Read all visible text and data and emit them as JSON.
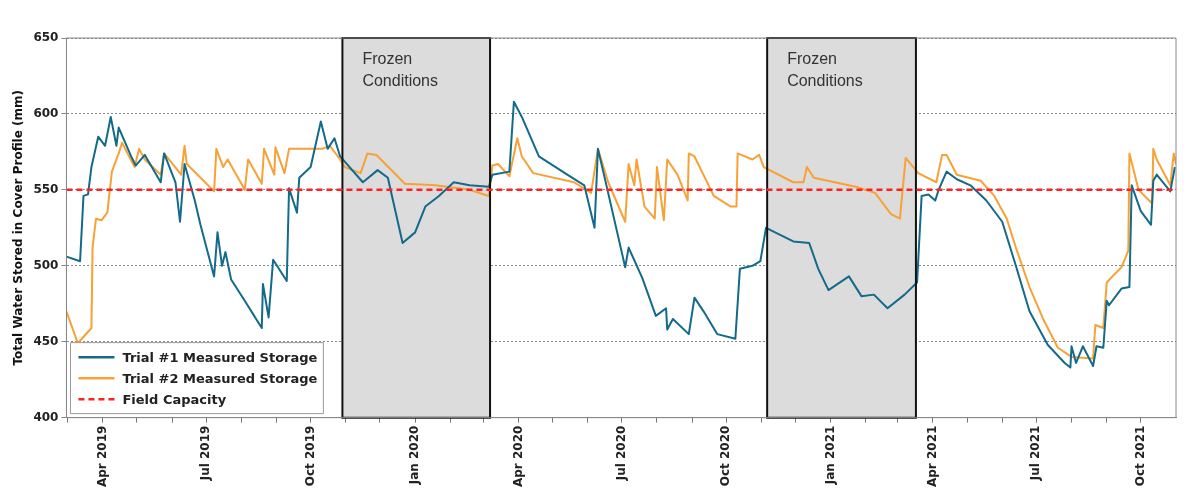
{
  "chart_data": {
    "type": "line",
    "ylabel": "Total Water Stored in Cover Profile (mm)",
    "xlim": [
      "2019-02-28",
      "2021-11-01"
    ],
    "xticks": [
      {
        "value": "2019-03-01",
        "label": null
      },
      {
        "value": "2019-04-01",
        "label": "Apr 2019"
      },
      {
        "value": "2019-05-01",
        "label": null
      },
      {
        "value": "2019-06-01",
        "label": null
      },
      {
        "value": "2019-07-01",
        "label": "Jul 2019"
      },
      {
        "value": "2019-08-01",
        "label": null
      },
      {
        "value": "2019-09-01",
        "label": null
      },
      {
        "value": "2019-10-01",
        "label": "Oct 2019"
      },
      {
        "value": "2019-11-01",
        "label": null
      },
      {
        "value": "2019-12-01",
        "label": null
      },
      {
        "value": "2020-01-01",
        "label": "Jan 2020"
      },
      {
        "value": "2020-02-01",
        "label": null
      },
      {
        "value": "2020-03-01",
        "label": null
      },
      {
        "value": "2020-04-01",
        "label": "Apr 2020"
      },
      {
        "value": "2020-05-01",
        "label": null
      },
      {
        "value": "2020-06-01",
        "label": null
      },
      {
        "value": "2020-07-01",
        "label": "Jul 2020"
      },
      {
        "value": "2020-08-01",
        "label": null
      },
      {
        "value": "2020-09-01",
        "label": null
      },
      {
        "value": "2020-10-01",
        "label": "Oct 2020"
      },
      {
        "value": "2020-11-01",
        "label": null
      },
      {
        "value": "2020-12-01",
        "label": null
      },
      {
        "value": "2021-01-01",
        "label": "Jan 2021"
      },
      {
        "value": "2021-02-01",
        "label": null
      },
      {
        "value": "2021-03-01",
        "label": null
      },
      {
        "value": "2021-04-01",
        "label": "Apr 2021"
      },
      {
        "value": "2021-05-01",
        "label": null
      },
      {
        "value": "2021-06-01",
        "label": null
      },
      {
        "value": "2021-07-01",
        "label": "Jul 2021"
      },
      {
        "value": "2021-08-01",
        "label": null
      },
      {
        "value": "2021-09-01",
        "label": null
      },
      {
        "value": "2021-10-01",
        "label": "Oct 2021"
      }
    ],
    "ylim": [
      400,
      650
    ],
    "yticks": [
      400,
      450,
      500,
      550,
      600,
      650
    ],
    "grid": "y",
    "legend": "bottom left",
    "series": [
      {
        "name": "Trial #1 Measured Storage",
        "color": "#136a8a",
        "x": [
          "2019-02-28",
          "2019-03-12",
          "2019-03-15",
          "2019-03-19",
          "2019-03-22",
          "2019-03-28",
          "2019-04-03",
          "2019-04-08",
          "2019-04-13",
          "2019-04-15",
          "2019-04-26",
          "2019-04-30",
          "2019-05-08",
          "2019-05-22",
          "2019-05-25",
          "2019-06-04",
          "2019-06-08",
          "2019-06-12",
          "2019-06-21",
          "2019-06-26",
          "2019-07-08",
          "2019-07-11",
          "2019-07-15",
          "2019-07-18",
          "2019-07-23",
          "2019-08-04",
          "2019-08-19",
          "2019-08-20",
          "2019-08-25",
          "2019-08-29",
          "2019-09-10",
          "2019-09-12",
          "2019-09-19",
          "2019-09-21",
          "2019-10-01",
          "2019-10-10",
          "2019-10-16",
          "2019-10-22",
          "2019-10-27",
          "2019-11-16",
          "2019-11-29",
          "2019-12-08",
          "2019-12-21",
          "2020-01-01",
          "2020-01-10",
          "2020-01-22",
          "2020-02-04",
          "2020-02-18",
          "2020-03-06",
          "2020-03-09",
          "2020-03-24",
          "2020-03-28",
          "2020-04-04",
          "2020-04-19",
          "2020-05-14",
          "2020-05-29",
          "2020-06-07",
          "2020-06-10",
          "2020-06-19",
          "2020-07-04",
          "2020-07-07",
          "2020-07-19",
          "2020-07-31",
          "2020-08-09",
          "2020-08-10",
          "2020-08-15",
          "2020-08-29",
          "2020-09-03",
          "2020-09-11",
          "2020-09-23",
          "2020-10-09",
          "2020-10-13",
          "2020-10-24",
          "2020-10-31",
          "2020-11-05",
          "2020-11-29",
          "2020-12-13",
          "2020-12-21",
          "2020-12-30",
          "2021-01-17",
          "2021-01-28",
          "2021-02-08",
          "2021-02-20",
          "2021-03-07",
          "2021-03-18",
          "2021-03-22",
          "2021-03-28",
          "2021-04-03",
          "2021-04-06",
          "2021-04-13",
          "2021-04-22",
          "2021-05-04",
          "2021-05-18",
          "2021-06-01",
          "2021-06-13",
          "2021-06-25",
          "2021-07-11",
          "2021-07-26",
          "2021-07-31",
          "2021-08-01",
          "2021-08-05",
          "2021-08-11",
          "2021-08-20",
          "2021-08-23",
          "2021-08-29",
          "2021-09-01",
          "2021-09-03",
          "2021-09-14",
          "2021-09-21",
          "2021-09-23",
          "2021-10-01",
          "2021-10-10",
          "2021-10-12",
          "2021-10-15",
          "2021-10-27",
          "2021-10-31"
        ],
        "values": [
          506,
          503,
          546,
          547,
          565,
          585,
          579,
          598,
          579,
          591,
          572,
          566,
          573,
          555,
          574,
          555,
          529,
          567,
          543,
          527,
          493,
          522,
          500,
          509,
          491,
          477,
          459,
          488,
          466,
          504,
          490,
          551,
          535,
          558,
          565,
          595,
          577,
          584,
          572,
          555,
          563,
          558,
          515,
          522,
          539,
          546,
          555,
          553,
          552,
          560,
          562,
          608,
          598,
          572,
          560,
          553,
          525,
          577,
          548,
          499,
          512,
          492,
          467,
          472,
          458,
          465,
          455,
          479,
          470,
          455,
          452,
          498,
          500,
          503,
          525,
          516,
          515,
          498,
          484,
          493,
          480,
          481,
          472,
          481,
          489,
          546,
          547,
          543,
          550,
          562,
          557,
          553,
          543,
          529,
          500,
          470,
          448,
          436,
          433,
          447,
          436,
          447,
          434,
          447,
          446,
          477,
          474,
          485,
          486,
          553,
          536,
          527,
          556,
          560,
          549,
          565
        ]
      },
      {
        "name": "Trial #2 Measured Storage",
        "color": "#f7a136",
        "x": [
          "2019-02-28",
          "2019-03-10",
          "2019-03-22",
          "2019-03-23",
          "2019-03-26",
          "2019-03-31",
          "2019-04-05",
          "2019-04-09",
          "2019-04-15",
          "2019-04-18",
          "2019-04-29",
          "2019-05-03",
          "2019-05-08",
          "2019-05-22",
          "2019-05-25",
          "2019-06-09",
          "2019-06-12",
          "2019-06-14",
          "2019-07-08",
          "2019-07-10",
          "2019-07-16",
          "2019-07-20",
          "2019-08-04",
          "2019-08-07",
          "2019-08-19",
          "2019-08-21",
          "2019-08-30",
          "2019-08-31",
          "2019-09-08",
          "2019-09-12",
          "2019-09-26",
          "2019-10-11",
          "2019-10-18",
          "2019-10-27",
          "2019-10-31",
          "2019-11-14",
          "2019-11-20",
          "2019-11-28",
          "2019-12-23",
          "2020-01-19",
          "2020-02-18",
          "2020-03-06",
          "2020-03-09",
          "2020-03-14",
          "2020-03-24",
          "2020-03-31",
          "2020-04-04",
          "2020-04-14",
          "2020-05-20",
          "2020-06-04",
          "2020-06-10",
          "2020-06-19",
          "2020-07-04",
          "2020-07-07",
          "2020-07-12",
          "2020-07-14",
          "2020-07-21",
          "2020-07-30",
          "2020-08-01",
          "2020-08-07",
          "2020-08-10",
          "2020-08-19",
          "2020-08-28",
          "2020-08-29",
          "2020-09-03",
          "2020-09-20",
          "2020-10-05",
          "2020-10-10",
          "2020-10-11",
          "2020-10-24",
          "2020-10-30",
          "2020-11-03",
          "2020-11-29",
          "2020-12-08",
          "2020-12-11",
          "2020-12-17",
          "2021-01-23",
          "2021-02-09",
          "2021-02-23",
          "2021-03-03",
          "2021-03-04",
          "2021-03-08",
          "2021-03-19",
          "2021-04-04",
          "2021-04-09",
          "2021-04-13",
          "2021-04-22",
          "2021-05-13",
          "2021-05-25",
          "2021-06-05",
          "2021-06-13",
          "2021-06-25",
          "2021-07-07",
          "2021-07-20",
          "2021-08-01",
          "2021-08-20",
          "2021-08-22",
          "2021-08-29",
          "2021-09-01",
          "2021-09-06",
          "2021-09-14",
          "2021-09-20",
          "2021-09-21",
          "2021-09-29",
          "2021-10-11",
          "2021-10-12",
          "2021-10-15",
          "2021-10-27",
          "2021-10-30",
          "2021-11-01"
        ],
        "values": [
          470,
          449,
          459,
          512,
          531,
          530,
          535,
          562,
          574,
          581,
          565,
          577,
          570,
          560,
          574,
          560,
          579,
          567,
          549,
          577,
          565,
          570,
          550,
          570,
          554,
          577,
          560,
          578,
          561,
          577,
          577,
          577,
          579,
          570,
          565,
          561,
          574,
          573,
          554,
          553,
          550,
          546,
          566,
          567,
          559,
          584,
          572,
          561,
          555,
          548,
          577,
          555,
          529,
          567,
          553,
          570,
          539,
          531,
          565,
          530,
          570,
          560,
          543,
          574,
          572,
          546,
          539,
          539,
          574,
          570,
          573,
          565,
          555,
          555,
          565,
          558,
          552,
          548,
          534,
          531,
          540,
          571,
          561,
          555,
          573,
          573,
          560,
          556,
          546,
          531,
          512,
          486,
          465,
          446,
          440,
          439,
          461,
          459,
          489,
          493,
          499,
          510,
          574,
          550,
          541,
          577,
          570,
          553,
          574,
          567
        ]
      }
    ],
    "ref_lines": [
      {
        "axis": "y",
        "value": 550,
        "label": "Field Capacity",
        "color": "#ff2020",
        "line_style": "dashed"
      }
    ],
    "bands": [
      {
        "axis": "x",
        "from": "2019-10-29",
        "to": "2020-03-07",
        "label": "Frozen Conditions",
        "color": "#dcdcdc"
      },
      {
        "axis": "x",
        "from": "2020-11-06",
        "to": "2021-03-17",
        "label": "Frozen Conditions",
        "color": "#dcdcdc"
      }
    ]
  }
}
